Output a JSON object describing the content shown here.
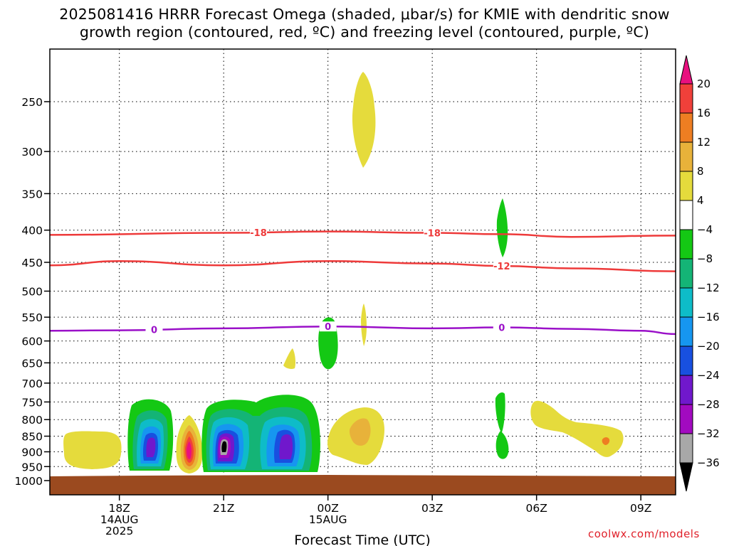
{
  "chart_data": {
    "type": "heatmap",
    "title_line1": "2025081416 HRRR Forecast Omega (shaded, μbar/s) for KMIE with dendritic snow",
    "title_line2": "growth region (contoured, red, ºC) and freezing level (contoured, purple, ºC)",
    "xlabel": "Forecast Time (UTC)",
    "ylabel": "",
    "x_range_hours_utc": [
      "2025-08-14T16:00Z",
      "2025-08-15T10:00Z"
    ],
    "y_range_hpa": [
      1000,
      200
    ],
    "y_scale": "log-pressure",
    "grid": true,
    "y_ticks": [
      250,
      300,
      350,
      400,
      450,
      500,
      550,
      600,
      650,
      700,
      750,
      800,
      850,
      900,
      950,
      1000
    ],
    "x_ticks": [
      {
        "time": "2025-08-14T18:00Z",
        "label": "18Z",
        "sub": "14AUG",
        "sub2": "2025"
      },
      {
        "time": "2025-08-14T21:00Z",
        "label": "21Z",
        "sub": "",
        "sub2": ""
      },
      {
        "time": "2025-08-15T00:00Z",
        "label": "00Z",
        "sub": "15AUG",
        "sub2": ""
      },
      {
        "time": "2025-08-15T03:00Z",
        "label": "03Z",
        "sub": "",
        "sub2": ""
      },
      {
        "time": "2025-08-15T06:00Z",
        "label": "06Z",
        "sub": "",
        "sub2": ""
      },
      {
        "time": "2025-08-15T09:00Z",
        "label": "09Z",
        "sub": "",
        "sub2": ""
      }
    ],
    "colorbar": {
      "levels": [
        -36,
        -32,
        -28,
        -24,
        -20,
        -16,
        -12,
        -8,
        -4,
        4,
        8,
        12,
        16,
        20
      ],
      "labels": [
        "20",
        "16",
        "12",
        "8",
        "4",
        "−4",
        "−8",
        "−12",
        "−16",
        "−20",
        "−24",
        "−28",
        "−32",
        "−36"
      ],
      "colors_top_to_bottom": [
        "#e8107f",
        "#f0403a",
        "#ee7e22",
        "#e8b23a",
        "#e5db3c",
        "#ffffff",
        "#14c814",
        "#14b476",
        "#0ebcc8",
        "#1696f0",
        "#1850e0",
        "#7018cc",
        "#a20ac0",
        "#a8a8a8",
        "#000000"
      ]
    },
    "contours": [
      {
        "kind": "isotherm",
        "label": "-18",
        "color": "#ee3a3a",
        "points_time_hpa": [
          [
            "2025-08-14T16:00Z",
            407
          ],
          [
            "2025-08-14T21:00Z",
            404
          ],
          [
            "2025-08-15T00:00Z",
            402
          ],
          [
            "2025-08-15T03:00Z",
            404
          ],
          [
            "2025-08-15T05:00Z",
            406
          ],
          [
            "2025-08-15T07:00Z",
            410
          ],
          [
            "2025-08-15T10:00Z",
            408
          ]
        ],
        "label_times": [
          "2025-08-14T22:00Z",
          "2025-08-15T03:00Z"
        ]
      },
      {
        "kind": "isotherm",
        "label": "-12",
        "color": "#ee3a3a",
        "points_time_hpa": [
          [
            "2025-08-14T16:00Z",
            455
          ],
          [
            "2025-08-14T18:00Z",
            448
          ],
          [
            "2025-08-14T21:00Z",
            455
          ],
          [
            "2025-08-15T00:00Z",
            448
          ],
          [
            "2025-08-15T03:00Z",
            452
          ],
          [
            "2025-08-15T05:00Z",
            456
          ],
          [
            "2025-08-15T07:00Z",
            460
          ],
          [
            "2025-08-15T10:00Z",
            465
          ]
        ],
        "label_times": [
          "2025-08-15T05:00Z"
        ]
      },
      {
        "kind": "freezing-level",
        "label": "0",
        "color": "#9a10c8",
        "points_time_hpa": [
          [
            "2025-08-14T16:00Z",
            578
          ],
          [
            "2025-08-14T18:00Z",
            577
          ],
          [
            "2025-08-14T21:00Z",
            573
          ],
          [
            "2025-08-15T00:00Z",
            569
          ],
          [
            "2025-08-15T03:00Z",
            573
          ],
          [
            "2025-08-15T05:00Z",
            571
          ],
          [
            "2025-08-15T07:00Z",
            574
          ],
          [
            "2025-08-15T09:00Z",
            578
          ],
          [
            "2025-08-15T10:00Z",
            585
          ]
        ],
        "label_times": [
          "2025-08-14T19:00Z",
          "2025-08-15T00:00Z",
          "2025-08-15T05:00Z"
        ]
      }
    ],
    "omega_features": [
      {
        "time": "2025-08-14T17:00Z",
        "hpa_range": [
          830,
          960
        ],
        "peak": 6
      },
      {
        "time": "2025-08-14T19:00Z",
        "hpa_range": [
          740,
          960
        ],
        "peak": -28
      },
      {
        "time": "2025-08-14T20:00Z",
        "hpa_range": [
          790,
          960
        ],
        "peak": 20
      },
      {
        "time": "2025-08-14T21:00Z",
        "hpa_range": [
          740,
          960
        ],
        "peak": -36
      },
      {
        "time": "2025-08-14T23:00Z",
        "hpa_range": [
          730,
          960
        ],
        "peak": -28
      },
      {
        "time": "2025-08-15T00:00Z",
        "hpa_range": [
          545,
          660
        ],
        "peak": -8
      },
      {
        "time": "2025-08-15T01:00Z",
        "hpa_range": [
          240,
          320
        ],
        "peak": 6
      },
      {
        "time": "2025-08-15T01:00Z",
        "hpa_range": [
          520,
          610
        ],
        "peak": 6
      },
      {
        "time": "2025-08-15T01:00Z",
        "hpa_range": [
          770,
          900
        ],
        "peak": 10
      },
      {
        "time": "2025-08-14T23:00Z",
        "hpa_range": [
          630,
          670
        ],
        "peak": 6
      },
      {
        "time": "2025-08-15T05:00Z",
        "hpa_range": [
          360,
          440
        ],
        "peak": -8
      },
      {
        "time": "2025-08-15T05:00Z",
        "hpa_range": [
          740,
          920
        ],
        "peak": -8
      },
      {
        "time": "2025-08-15T07:00Z",
        "hpa_range": [
          760,
          920
        ],
        "peak": 8
      },
      {
        "time": "2025-08-15T08:00Z",
        "hpa_range": [
          840,
          880
        ],
        "peak": 10
      }
    ],
    "colors": {
      "ground": "#9b4a1f",
      "grid": "#000000"
    }
  },
  "credit": "coolwx.com/models"
}
